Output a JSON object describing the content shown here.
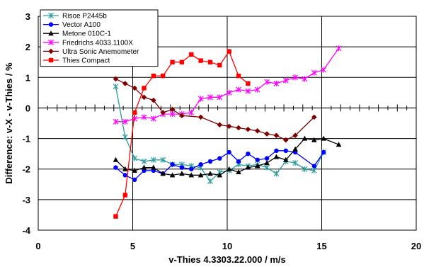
{
  "chart_data": {
    "type": "line",
    "title": "",
    "xlabel": "v-Thies 4.3303.22.000 / m/s",
    "ylabel": "Difference: v-X - v-Thies / %",
    "xlim": [
      0,
      20
    ],
    "ylim": [
      -4,
      3
    ],
    "x_ticks": [
      "0",
      "5",
      "10",
      "15",
      "20"
    ],
    "y_ticks": [
      "-4",
      "-3",
      "-2",
      "-1",
      "0",
      "1",
      "2",
      "3"
    ],
    "grid": true,
    "legend_position": "top-left",
    "series": [
      {
        "name": "Risoe P2445b",
        "color": "#2e9c9c",
        "marker": "asterisk",
        "x": [
          4.1,
          4.6,
          5.1,
          5.6,
          6.1,
          6.6,
          7.1,
          7.6,
          8.1,
          8.6,
          9.1,
          9.6,
          10.1,
          10.6,
          11.1,
          11.6,
          12.1,
          12.6,
          13.1,
          13.6,
          14.1,
          14.6,
          15.1
        ],
        "y": [
          0.7,
          -0.95,
          -1.65,
          -1.75,
          -1.7,
          -1.7,
          -1.85,
          -1.85,
          -1.9,
          -1.95,
          -2.4,
          -2.1,
          -2.05,
          -1.85,
          -1.9,
          -1.85,
          -1.95,
          -2.15,
          -1.75,
          -1.8,
          -2.0,
          -2.05,
          -1.45
        ]
      },
      {
        "name": "Vector A100",
        "color": "#0000ff",
        "marker": "circle",
        "x": [
          4.1,
          4.6,
          5.1,
          5.6,
          6.1,
          6.6,
          7.1,
          7.6,
          8.1,
          8.6,
          9.1,
          9.6,
          10.1,
          10.6,
          11.1,
          11.6,
          12.1,
          12.6,
          13.1,
          13.6,
          14.6,
          15.1
        ],
        "y": [
          -1.95,
          -2.2,
          -2.35,
          -2.05,
          -2.05,
          -2.15,
          -1.85,
          -1.95,
          -2.0,
          -1.85,
          -1.75,
          -1.65,
          -1.45,
          -1.75,
          -1.5,
          -1.7,
          -1.65,
          -1.4,
          -1.4,
          -1.45,
          -1.9,
          -1.45
        ]
      },
      {
        "name": "Metone 010C-1",
        "color": "#000000",
        "marker": "triangle",
        "x": [
          4.1,
          4.6,
          5.1,
          5.6,
          6.1,
          6.6,
          7.1,
          7.6,
          8.1,
          8.6,
          9.1,
          9.6,
          10.1,
          10.6,
          11.1,
          11.6,
          12.1,
          12.6,
          13.1,
          13.6,
          14.1,
          14.6,
          15.1,
          15.9
        ],
        "y": [
          -1.7,
          -2.0,
          -2.05,
          -1.95,
          -1.95,
          -2.15,
          -2.2,
          -2.15,
          -2.2,
          -2.2,
          -2.15,
          -2.2,
          -2.0,
          -2.1,
          -1.95,
          -1.9,
          -1.8,
          -1.6,
          -1.7,
          -1.35,
          -1.0,
          -1.05,
          -1.0,
          -1.2
        ]
      },
      {
        "name": "Friedrichs 4033.1100X",
        "color": "#ff00ff",
        "marker": "asterisk",
        "x": [
          4.1,
          4.6,
          5.1,
          5.6,
          6.1,
          6.6,
          7.1,
          7.6,
          8.1,
          8.6,
          9.1,
          9.6,
          10.1,
          10.6,
          11.1,
          11.6,
          12.1,
          12.6,
          13.1,
          13.6,
          14.1,
          14.6,
          15.1,
          15.9
        ],
        "y": [
          -0.45,
          -0.45,
          -0.35,
          -0.3,
          -0.35,
          -0.2,
          -0.2,
          -0.2,
          -0.15,
          0.3,
          0.35,
          0.35,
          0.5,
          0.6,
          0.55,
          0.6,
          0.85,
          0.8,
          0.9,
          1.0,
          0.95,
          1.15,
          1.25,
          1.95
        ]
      },
      {
        "name": "Ultra Sonic Anemometer",
        "color": "#800000",
        "marker": "diamond",
        "x": [
          4.1,
          4.6,
          5.1,
          5.6,
          6.1,
          6.6,
          7.1,
          7.6,
          8.6,
          9.6,
          10.1,
          10.6,
          11.1,
          11.6,
          12.1,
          12.6,
          13.1,
          13.6,
          14.6
        ],
        "y": [
          0.95,
          0.8,
          0.65,
          0.35,
          0.25,
          -0.15,
          -0.05,
          -0.25,
          -0.3,
          -0.55,
          -0.6,
          -0.65,
          -0.7,
          -0.75,
          -0.85,
          -0.9,
          -1.05,
          -0.9,
          -0.3
        ]
      },
      {
        "name": "Thies Compact",
        "color": "#ff0000",
        "marker": "square",
        "x": [
          4.1,
          4.6,
          5.1,
          5.6,
          6.1,
          6.6,
          7.1,
          7.6,
          8.1,
          8.6,
          9.1,
          9.6,
          10.1,
          10.6,
          11.1
        ],
        "y": [
          -3.55,
          -2.85,
          -0.15,
          0.65,
          1.05,
          1.05,
          1.5,
          1.5,
          1.75,
          1.55,
          1.5,
          1.4,
          1.85,
          1.05,
          0.8
        ]
      }
    ]
  }
}
